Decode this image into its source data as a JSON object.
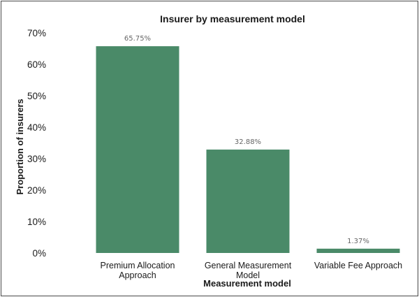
{
  "chart_data": {
    "type": "bar",
    "title": "Insurer by measurement model",
    "xlabel": "Measurement model",
    "ylabel": "Proportion of insurers",
    "categories": [
      [
        "Premium Allocation",
        "Approach"
      ],
      [
        "General Measurement",
        "Model"
      ],
      [
        "Variable Fee Approach"
      ]
    ],
    "values": [
      65.75,
      32.88,
      1.37
    ],
    "data_labels": [
      "65.75%",
      "32.88%",
      "1.37%"
    ],
    "ylim": [
      0,
      70
    ],
    "yticks": [
      0,
      10,
      20,
      30,
      40,
      50,
      60,
      70
    ],
    "ytick_labels": [
      "0%",
      "10%",
      "20%",
      "30%",
      "40%",
      "50%",
      "60%",
      "70%"
    ],
    "grid": false,
    "legend": "none",
    "bar_color": "#4a8a68"
  }
}
